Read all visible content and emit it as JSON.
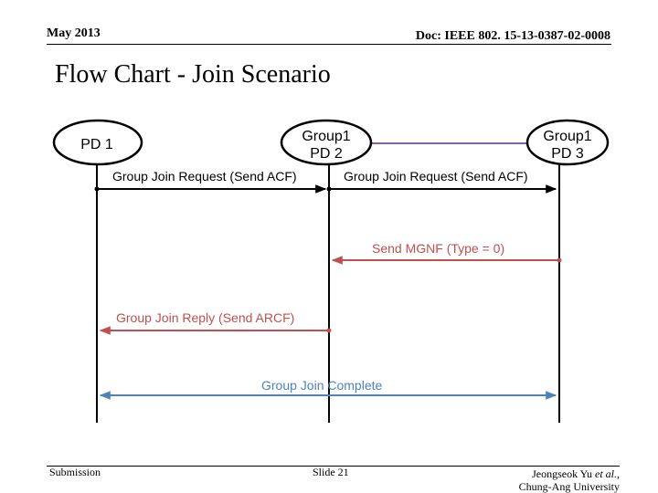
{
  "header": {
    "date": "May 2013",
    "doc_id": "Doc: IEEE 802. 15-13-0387-02-0008"
  },
  "title": "Flow Chart - Join Scenario",
  "nodes": {
    "pd1": "PD 1",
    "pd2_line1": "Group1",
    "pd2_line2": "PD 2",
    "pd3_line1": "Group1",
    "pd3_line2": "PD 3"
  },
  "messages": {
    "join_request_1": "Group Join Request (Send ACF)",
    "join_request_2": "Group Join Request (Send ACF)",
    "send_mgnf": "Send MGNF (Type = 0)",
    "join_reply": "Group Join Reply (Send ARCF)",
    "join_complete": "Group Join Complete"
  },
  "footer": {
    "submission": "Submission",
    "slide": "Slide 21",
    "author_line1": "Jeongseok Yu ",
    "author_etal": "et al.",
    "author_comma": ",",
    "author_line2": "Chung-Ang University"
  },
  "colors": {
    "black_arrow": "#000000",
    "red_arrow": "#c0504d",
    "blue_arrow": "#4f81bd",
    "purple_link": "#8064a2",
    "red_text": "#c0504d",
    "blue_text": "#4f81bd"
  }
}
